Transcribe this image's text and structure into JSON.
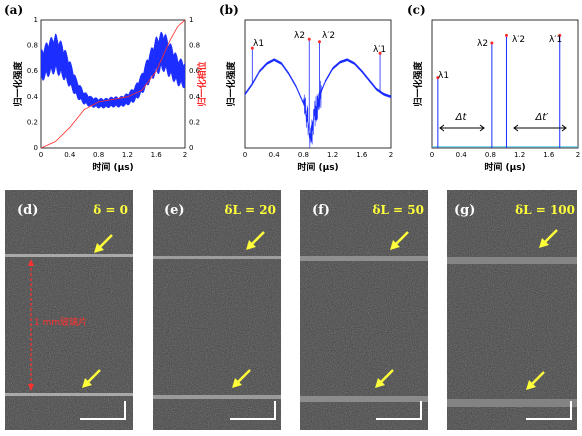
{
  "colors": {
    "blue": "#1a2cff",
    "red": "#ff2a2a",
    "yellow": "#ffff3a",
    "labelWhite": "#ffffff",
    "redText": "#ff3030"
  },
  "panels_top": [
    {
      "label": "(a)",
      "xlabel": "时间 (μs)",
      "ylabel_left": "归一化强度",
      "ylabel_right": "归一化相位",
      "x_ticks": [
        "0",
        "0.4",
        "0.8",
        "1.2",
        "1.6",
        "2"
      ],
      "y_ticks_left": [
        "0",
        "0.2",
        "0.4",
        "0.6",
        "0.8",
        "1"
      ],
      "y_ticks_right": [
        "0",
        "0.2",
        "0.4",
        "0.6",
        "0.8",
        "1"
      ]
    },
    {
      "label": "(b)",
      "xlabel": "时间 (μs)",
      "ylabel": "归一化强度",
      "x_ticks": [
        "0",
        "0.4",
        "0.8",
        "1.2",
        "1.6",
        "2"
      ],
      "peaks": [
        "λ1",
        "λ2",
        "λ′2",
        "λ′1"
      ]
    },
    {
      "label": "(c)",
      "xlabel": "时间 (μs)",
      "ylabel": "归一化强度",
      "x_ticks": [
        "0",
        "0.4",
        "0.8",
        "1.2",
        "1.6",
        "2"
      ],
      "peaks": [
        "λ1",
        "λ2",
        "λ′2",
        "λ′1"
      ],
      "dt": "Δt",
      "dtp": "Δt′"
    }
  ],
  "chart_data": [
    {
      "type": "line",
      "title": "(a)",
      "xlabel": "时间 (μs)",
      "ylabel": "归一化强度",
      "y2label": "归一化相位",
      "xlim": [
        0,
        2
      ],
      "ylim": [
        0,
        1
      ],
      "series": [
        {
          "x": [
            0,
            0.1,
            0.2,
            0.3,
            0.4,
            0.5,
            0.6,
            0.7,
            0.8,
            0.9,
            1.0,
            1.1,
            1.2,
            1.3,
            1.4,
            1.5,
            1.6,
            1.7,
            1.8,
            1.9,
            2.0
          ],
          "y": [
            0.64,
            0.7,
            0.74,
            0.68,
            0.58,
            0.46,
            0.39,
            0.36,
            0.35,
            0.35,
            0.36,
            0.36,
            0.38,
            0.42,
            0.5,
            0.62,
            0.72,
            0.76,
            0.68,
            0.6,
            0.57
          ]
        },
        {
          "x": [
            0,
            0.2,
            0.4,
            0.6,
            0.8,
            1.0,
            1.2,
            1.4,
            1.6,
            1.8,
            1.9,
            2.0
          ],
          "y": [
            0,
            0.05,
            0.16,
            0.3,
            0.36,
            0.38,
            0.4,
            0.45,
            0.6,
            0.85,
            0.95,
            1.0
          ]
        }
      ]
    },
    {
      "type": "line",
      "title": "(b)",
      "xlabel": "时间 (μs)",
      "ylabel": "归一化强度",
      "xlim": [
        0,
        2
      ],
      "series": [
        {
          "x": [
            0,
            0.1,
            0.2,
            0.3,
            0.4,
            0.5,
            0.6,
            0.7,
            0.8,
            0.85,
            0.9,
            0.95,
            1.0,
            1.05,
            1.1,
            1.2,
            1.3,
            1.4,
            1.5,
            1.6,
            1.7,
            1.8,
            1.9,
            2.0
          ],
          "y": [
            0.42,
            0.5,
            0.6,
            0.66,
            0.69,
            0.66,
            0.58,
            0.48,
            0.35,
            0.25,
            0.05,
            0.25,
            0.35,
            0.45,
            0.52,
            0.62,
            0.67,
            0.69,
            0.66,
            0.6,
            0.53,
            0.46,
            0.42,
            0.4
          ]
        }
      ],
      "peaks": [
        {
          "name": "λ1",
          "x": 0.1,
          "y": 0.78
        },
        {
          "name": "λ2",
          "x": 0.88,
          "y": 0.85
        },
        {
          "name": "λ′2",
          "x": 1.02,
          "y": 0.83
        },
        {
          "name": "λ′1",
          "x": 1.85,
          "y": 0.74
        }
      ]
    },
    {
      "type": "bar",
      "title": "(c)",
      "xlabel": "时间 (μs)",
      "ylabel": "归一化强度",
      "xlim": [
        0,
        2
      ],
      "x": [
        0.08,
        0.82,
        1.02,
        1.75
      ],
      "values": [
        0.55,
        0.82,
        0.88,
        0.88
      ]
    }
  ],
  "panels_bottom": [
    {
      "label": "(d)",
      "param": "δ = 0",
      "annot": "1 mm玻璃片"
    },
    {
      "label": "(e)",
      "param": "δL = 20"
    },
    {
      "label": "(f)",
      "param": "δL = 50"
    },
    {
      "label": "(g)",
      "param": "δL = 100"
    }
  ]
}
